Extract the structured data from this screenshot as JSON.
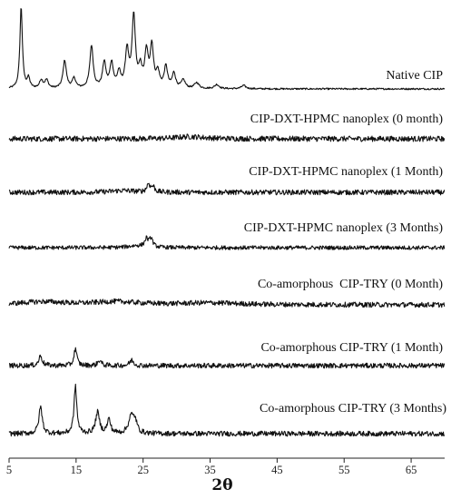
{
  "chart_data": {
    "type": "line",
    "xlabel": "2θ",
    "ylabel": "",
    "xlim": [
      5,
      70
    ],
    "x_ticks": [
      "5",
      "15",
      "25",
      "35",
      "45",
      "55",
      "65"
    ],
    "y_axis_values": "none",
    "grid": false,
    "legend": "none",
    "series": [
      {
        "name": "Native CIP",
        "baseline": 0.0,
        "noise": 0.01,
        "peaks": [
          {
            "x": 6.8,
            "h": 1.0,
            "w": 0.22
          },
          {
            "x": 7.9,
            "h": 0.12,
            "w": 0.25
          },
          {
            "x": 9.8,
            "h": 0.1,
            "w": 0.3
          },
          {
            "x": 10.6,
            "h": 0.1,
            "w": 0.3
          },
          {
            "x": 13.3,
            "h": 0.34,
            "w": 0.3
          },
          {
            "x": 14.7,
            "h": 0.12,
            "w": 0.3
          },
          {
            "x": 17.3,
            "h": 0.52,
            "w": 0.3
          },
          {
            "x": 19.2,
            "h": 0.31,
            "w": 0.3
          },
          {
            "x": 20.3,
            "h": 0.3,
            "w": 0.3
          },
          {
            "x": 21.4,
            "h": 0.18,
            "w": 0.3
          },
          {
            "x": 22.6,
            "h": 0.45,
            "w": 0.3
          },
          {
            "x": 23.6,
            "h": 0.87,
            "w": 0.3
          },
          {
            "x": 24.6,
            "h": 0.22,
            "w": 0.3
          },
          {
            "x": 25.5,
            "h": 0.42,
            "w": 0.3
          },
          {
            "x": 26.3,
            "h": 0.5,
            "w": 0.3
          },
          {
            "x": 27.2,
            "h": 0.18,
            "w": 0.3
          },
          {
            "x": 28.4,
            "h": 0.26,
            "w": 0.3
          },
          {
            "x": 29.6,
            "h": 0.18,
            "w": 0.3
          },
          {
            "x": 31.0,
            "h": 0.1,
            "w": 0.35
          },
          {
            "x": 33.0,
            "h": 0.07,
            "w": 0.4
          },
          {
            "x": 36.0,
            "h": 0.05,
            "w": 0.4
          },
          {
            "x": 40.0,
            "h": 0.04,
            "w": 0.4
          }
        ]
      },
      {
        "name": "CIP-DXT-HPMC nanoplex (0 month)",
        "baseline": 0.0,
        "noise": 0.075,
        "peaks": [
          {
            "x": 32.0,
            "h": 0.06,
            "w": 2.5
          }
        ]
      },
      {
        "name": "CIP-DXT-HPMC nanoplex (1 Month)",
        "baseline": 0.0,
        "noise": 0.07,
        "peaks": [
          {
            "x": 25.8,
            "h": 0.22,
            "w": 0.3
          },
          {
            "x": 26.5,
            "h": 0.14,
            "w": 0.3
          },
          {
            "x": 22.0,
            "h": 0.05,
            "w": 2.0
          }
        ]
      },
      {
        "name": "CIP-DXT-HPMC nanoplex (3 Months)",
        "baseline": 0.0,
        "noise": 0.055,
        "peaks": [
          {
            "x": 25.5,
            "h": 0.22,
            "w": 0.3
          },
          {
            "x": 26.2,
            "h": 0.24,
            "w": 0.3
          },
          {
            "x": 24.0,
            "h": 0.05,
            "w": 1.5
          }
        ]
      },
      {
        "name": "Co-amorphous  CIP-TRY (0 Month)",
        "baseline": 0.0,
        "noise": 0.07,
        "peaks": [
          {
            "x": 10.0,
            "h": 0.08,
            "w": 4.0
          },
          {
            "x": 21.0,
            "h": 0.08,
            "w": 4.0
          },
          {
            "x": 35.0,
            "h": 0.05,
            "w": 5.0
          }
        ]
      },
      {
        "name": "Co-amorphous CIP-TRY (1 Month)",
        "baseline": 0.0,
        "noise": 0.055,
        "peaks": [
          {
            "x": 9.7,
            "h": 0.22,
            "w": 0.3
          },
          {
            "x": 14.9,
            "h": 0.38,
            "w": 0.25
          },
          {
            "x": 18.5,
            "h": 0.12,
            "w": 0.3
          },
          {
            "x": 23.3,
            "h": 0.12,
            "w": 0.35
          }
        ]
      },
      {
        "name": "Co-amorphous CIP-TRY (3 Months)",
        "baseline": 0.0,
        "noise": 0.04,
        "peaks": [
          {
            "x": 9.7,
            "h": 0.42,
            "w": 0.3
          },
          {
            "x": 14.9,
            "h": 0.74,
            "w": 0.25
          },
          {
            "x": 18.2,
            "h": 0.33,
            "w": 0.35
          },
          {
            "x": 19.9,
            "h": 0.22,
            "w": 0.3
          },
          {
            "x": 23.2,
            "h": 0.26,
            "w": 0.45
          },
          {
            "x": 23.8,
            "h": 0.18,
            "w": 0.35
          }
        ]
      }
    ]
  }
}
